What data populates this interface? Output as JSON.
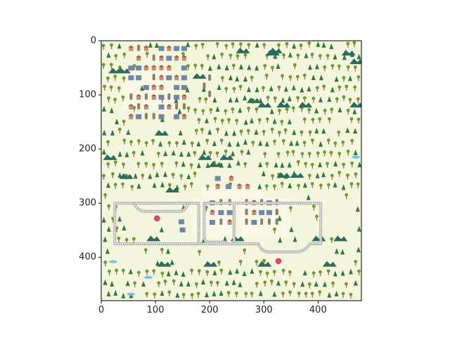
{
  "figure": {
    "x_ticks": [
      "0",
      "100",
      "200",
      "300",
      "400"
    ],
    "y_ticks": [
      "0",
      "100",
      "200",
      "300",
      "400"
    ],
    "map_extent": [
      0,
      480
    ],
    "background_color": "#f3f5dc",
    "frame_color": "#000000"
  },
  "map": {
    "palm_color": "#6f9a2e",
    "pine_color": "#2f7a3b",
    "mountain_color": "#2d6b5c",
    "house_color": "#c98a6e",
    "building_color": "#6f86a8",
    "tower_color": "#8c7f6a",
    "water_color": "#6cc3ef",
    "rail_color": "#b5b5b5",
    "station_color": "#d94a6a"
  }
}
